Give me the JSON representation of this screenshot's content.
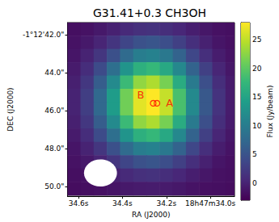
{
  "chart_data": {
    "type": "heatmap",
    "title": "G31.41+0.3 CH3OH",
    "x_label": "RA (J2000)",
    "y_label": "DEC (J2000)",
    "xlim": [
      34.65,
      33.89
    ],
    "ylim": [
      50.5,
      41.35
    ],
    "xticks": [
      {
        "value": 34.6,
        "label": "34.6s"
      },
      {
        "value": 34.4,
        "label": "34.4s"
      },
      {
        "value": 34.2,
        "label": "34.2s"
      },
      {
        "value": 34.0,
        "label": "18h47m34.0s"
      }
    ],
    "yticks": [
      {
        "value": 42,
        "label": "-1°12'42.0\""
      },
      {
        "value": 44,
        "label": "44.0\""
      },
      {
        "value": 46,
        "label": "46.0\""
      },
      {
        "value": 48,
        "label": "48.0\""
      },
      {
        "value": 50,
        "label": "50.0\""
      }
    ],
    "ra": [
      34.62,
      34.56,
      34.5,
      34.44,
      34.38,
      34.32,
      34.26,
      34.2,
      34.14,
      34.08,
      34.02,
      33.96,
      33.9
    ],
    "dec": [
      41.7,
      42.4,
      43.1,
      43.8,
      44.5,
      45.2,
      45.9,
      46.6,
      47.3,
      48.0,
      48.7,
      49.4,
      50.1
    ],
    "flux": [
      [
        -1.8,
        -1.5,
        -0.9,
        -0.2,
        0.7,
        1.3,
        1.5,
        1.1,
        0.4,
        -0.4,
        -1.1,
        -1.6,
        -1.8
      ],
      [
        -1.5,
        -0.9,
        0.2,
        1.8,
        3.5,
        4.8,
        5.2,
        4.4,
        2.9,
        1.2,
        -0.2,
        -1.2,
        -1.7
      ],
      [
        -1.2,
        0.0,
        1.9,
        4.7,
        7.7,
        10.1,
        10.7,
        9.4,
        6.8,
        3.7,
        1.2,
        -0.5,
        -1.4
      ],
      [
        -0.7,
        1.0,
        4.1,
        8.3,
        13.0,
        16.6,
        17.6,
        15.6,
        11.5,
        6.8,
        2.9,
        0.3,
        -1.1
      ],
      [
        -0.3,
        2.0,
        6.1,
        11.8,
        18.0,
        22.8,
        24.2,
        21.5,
        16.0,
        9.7,
        4.5,
        1.1,
        -0.7
      ],
      [
        0.0,
        2.7,
        7.4,
        14.0,
        21.2,
        26.7,
        28.3,
        25.3,
        18.9,
        11.6,
        5.6,
        1.6,
        -0.6
      ],
      [
        0.0,
        2.7,
        7.4,
        14.0,
        21.2,
        26.7,
        28.3,
        25.3,
        18.9,
        11.6,
        5.6,
        1.6,
        -0.6
      ],
      [
        -0.3,
        2.0,
        6.1,
        11.8,
        18.0,
        22.8,
        24.2,
        21.5,
        16.0,
        9.7,
        4.5,
        1.1,
        -0.7
      ],
      [
        -0.7,
        1.0,
        4.1,
        8.3,
        13.0,
        16.6,
        17.6,
        15.6,
        11.5,
        6.8,
        2.9,
        0.3,
        -1.1
      ],
      [
        -1.2,
        0.0,
        1.9,
        4.7,
        7.7,
        10.1,
        10.7,
        9.4,
        6.8,
        3.7,
        1.2,
        -0.5,
        -1.4
      ],
      [
        -1.5,
        -0.9,
        0.2,
        1.8,
        3.5,
        4.8,
        5.2,
        4.4,
        2.9,
        1.2,
        -0.2,
        -1.2,
        -1.7
      ],
      [
        -1.8,
        -1.5,
        -0.9,
        -0.2,
        0.7,
        1.3,
        1.5,
        1.1,
        0.4,
        -0.4,
        -1.1,
        -1.6,
        -1.8
      ],
      [
        -1.9,
        -1.8,
        -1.6,
        -1.3,
        -0.9,
        -0.7,
        -0.6,
        -0.7,
        -1.0,
        -1.4,
        -1.7,
        -1.8,
        -1.9
      ]
    ],
    "colorbar": {
      "label": "Flux (Jy/beam)",
      "range": [
        -3,
        28
      ],
      "ticks": [
        0,
        5,
        10,
        15,
        20,
        25
      ]
    },
    "sources": [
      {
        "label": "A",
        "ra": 34.243,
        "dec": 45.6,
        "color": "#ff0000"
      },
      {
        "label": "B",
        "ra": 34.26,
        "dec": 45.6,
        "color": "#ff0000"
      }
    ],
    "beam": {
      "ra": 34.5,
      "dec": 49.27,
      "ra_width": 0.15,
      "dec_height": 1.43,
      "color": "#ffffff"
    }
  }
}
